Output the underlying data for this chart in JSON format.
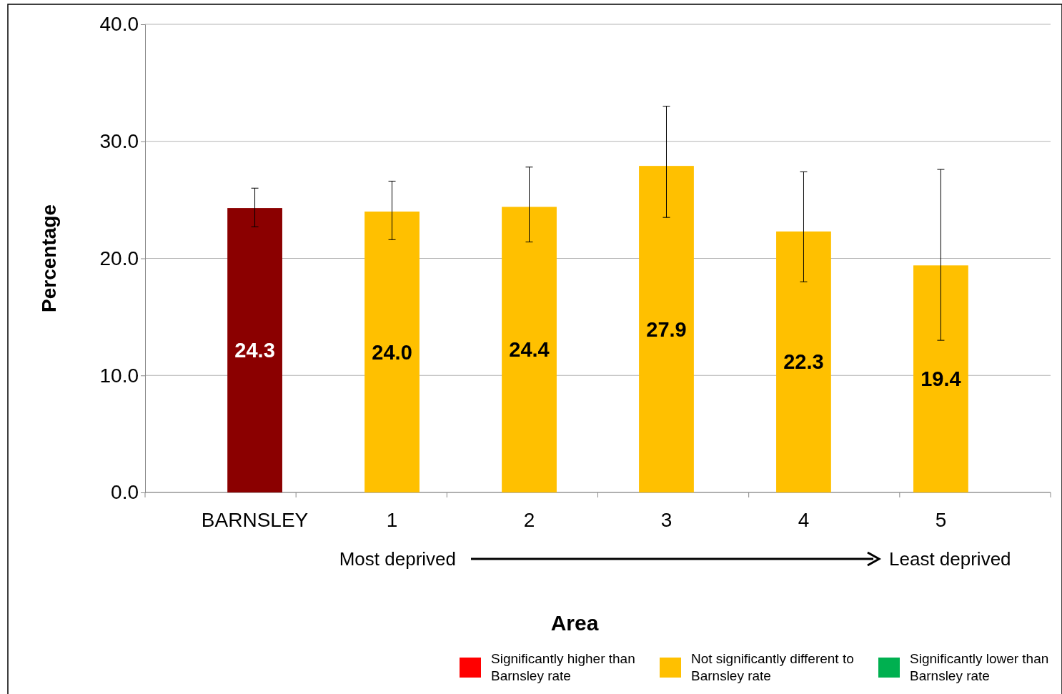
{
  "chart_data": {
    "type": "bar",
    "xlabel": "Area",
    "ylabel": "Percentage",
    "categories": [
      "BARNSLEY",
      "1",
      "2",
      "3",
      "4",
      "5"
    ],
    "series": [
      {
        "color": "#8b0000",
        "values": [
          24.3,
          null,
          null,
          null,
          null,
          null
        ],
        "errors": [
          [
            22.7,
            26.0
          ],
          null,
          null,
          null,
          null,
          null
        ],
        "value_labels": [
          "24.3",
          null,
          null,
          null,
          null,
          null
        ]
      },
      {
        "name": "Significantly higher than Barnsley rate",
        "color": "#ff0000",
        "values": [
          null,
          null,
          null,
          null,
          null,
          null
        ]
      },
      {
        "name": "Not significantly different to Barnsley rate",
        "color": "#ffc000",
        "values": [
          null,
          24.0,
          24.4,
          27.9,
          22.3,
          19.4
        ],
        "errors": [
          null,
          [
            21.6,
            26.6
          ],
          [
            21.4,
            27.8
          ],
          [
            23.5,
            33.0
          ],
          [
            18.0,
            27.4
          ],
          [
            13.0,
            27.6
          ]
        ],
        "value_labels": [
          null,
          "24.0",
          "24.4",
          "27.9",
          "22.3",
          "19.4"
        ]
      },
      {
        "name": "Significantly lower than Barnsley rate",
        "color": "#00b050",
        "values": [
          null,
          null,
          null,
          null,
          null,
          null
        ]
      }
    ],
    "ylim": [
      0,
      40
    ],
    "yticks": [
      {
        "value": 0,
        "label": "0.0"
      },
      {
        "value": 10,
        "label": "10.0"
      },
      {
        "value": 20,
        "label": "20.0"
      },
      {
        "value": 30,
        "label": "30.0"
      },
      {
        "value": 40,
        "label": "40.0"
      }
    ],
    "grid": "y",
    "legend": "bottom right",
    "annotations": [
      "Most deprived",
      "Least deprived"
    ]
  }
}
